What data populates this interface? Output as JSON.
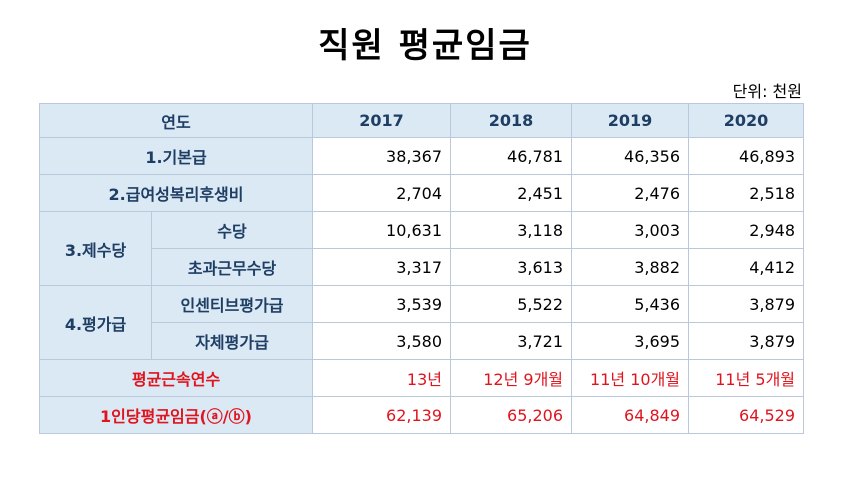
{
  "title": "직원 평균임금",
  "unit": "단위: 천원",
  "header": {
    "label": "연도",
    "years": [
      "2017",
      "2018",
      "2019",
      "2020"
    ]
  },
  "rows": {
    "base_pay": {
      "label": "1.기본급",
      "values": [
        "38,367",
        "46,781",
        "46,356",
        "46,893"
      ]
    },
    "welfare": {
      "label": "2.급여성복리후생비",
      "values": [
        "2,704",
        "2,451",
        "2,476",
        "2,518"
      ]
    },
    "allowances": {
      "label": "3.제수당",
      "allowance": {
        "label": "수당",
        "values": [
          "10,631",
          "3,118",
          "3,003",
          "2,948"
        ]
      },
      "overtime": {
        "label": "초과근무수당",
        "values": [
          "3,317",
          "3,613",
          "3,882",
          "4,412"
        ]
      }
    },
    "evaluation": {
      "label": "4.평가급",
      "incentive": {
        "label": "인센티브평가급",
        "values": [
          "3,539",
          "5,522",
          "5,436",
          "3,879"
        ]
      },
      "self": {
        "label": "자체평가급",
        "values": [
          "3,580",
          "3,721",
          "3,695",
          "3,879"
        ]
      }
    },
    "tenure": {
      "label": "평균근속연수",
      "values": [
        "13년",
        "12년 9개월",
        "11년 10개월",
        "11년 5개월"
      ]
    },
    "avg_wage": {
      "label": "1인당평균임금(ⓐ/ⓑ)",
      "values": [
        "62,139",
        "65,206",
        "64,849",
        "64,529"
      ]
    }
  },
  "colors": {
    "header_bg": "#dbe9f5",
    "header_text": "#1f3e63",
    "highlight": "#e0141e",
    "border": "#b9c9db"
  }
}
